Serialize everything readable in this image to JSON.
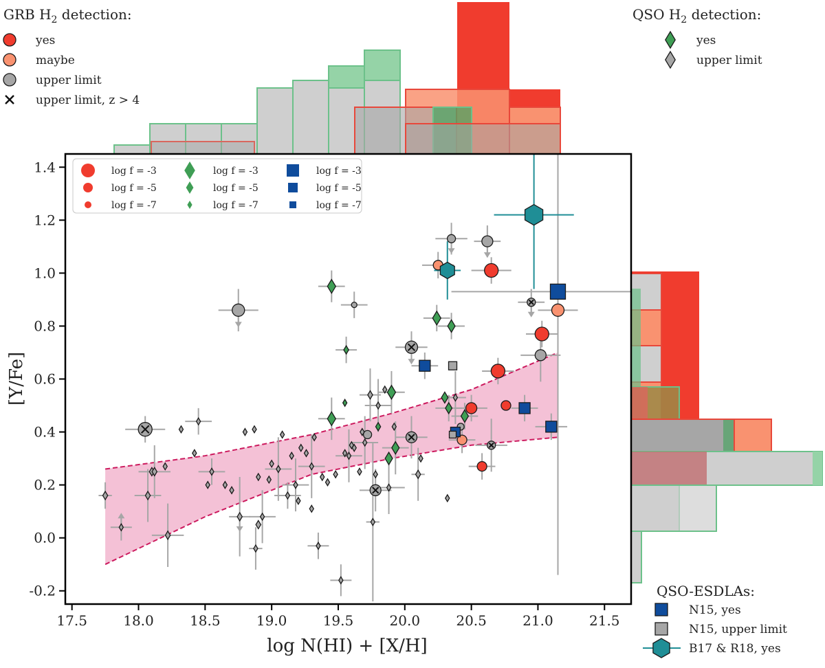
{
  "chart_data": {
    "type": "scatter",
    "xlabel": "log N(HI) + [X/H]",
    "ylabel": "[Y/Fe]",
    "xlim": [
      17.45,
      21.7
    ],
    "ylim": [
      -0.25,
      1.45
    ],
    "xticks": [
      17.5,
      18.0,
      18.5,
      19.0,
      19.5,
      20.0,
      20.5,
      21.0,
      21.5
    ],
    "xtick_labels": [
      "17.5",
      "18.0",
      "18.5",
      "19.0",
      "19.5",
      "20.0",
      "20.5",
      "21.0",
      "21.5"
    ],
    "yticks": [
      -0.2,
      0.0,
      0.2,
      0.4,
      0.6,
      0.8,
      1.0,
      1.2,
      1.4
    ],
    "ytick_labels": [
      "-0.2",
      "0.0",
      "0.2",
      "0.4",
      "0.6",
      "0.8",
      "1.0",
      "1.2",
      "1.4"
    ],
    "colors": {
      "grb_yes": "#f03c2e",
      "grb_maybe": "#f99270",
      "grey": "#a6a6a6",
      "qso_yes": "#3f9e55",
      "esdla": "#0f4c9c",
      "b17": "#1f8e96",
      "band": "#f3bed4",
      "band_line": "#cc1a5e"
    },
    "legends": {
      "grb": {
        "title": "GRB H",
        "title_sub": "2",
        "title_rest": " detection:",
        "items": [
          {
            "label": "yes",
            "marker": "circle",
            "color": "#f03c2e"
          },
          {
            "label": "maybe",
            "marker": "circle",
            "color": "#f99270"
          },
          {
            "label": "upper limit",
            "marker": "circle",
            "color": "#a6a6a6"
          },
          {
            "label": "upper limit, z > 4",
            "marker": "x",
            "color": "#222222"
          }
        ]
      },
      "qso": {
        "title": "QSO H",
        "title_sub": "2",
        "title_rest": " detection:",
        "items": [
          {
            "label": "yes",
            "marker": "diamond",
            "color": "#3f9e55"
          },
          {
            "label": "upper limit",
            "marker": "diamond",
            "color": "#a6a6a6"
          }
        ]
      },
      "esdla": {
        "title": "QSO-ESDLAs:",
        "items": [
          {
            "label": "N15, yes",
            "marker": "square",
            "color": "#0f4c9c"
          },
          {
            "label": "N15, upper limit",
            "marker": "square",
            "color": "#a6a6a6"
          },
          {
            "label": "B17 & R18, yes",
            "marker": "hexagon",
            "color": "#1f8e96"
          }
        ]
      },
      "size": {
        "columns": [
          {
            "marker": "circle",
            "color": "#f03c2e",
            "labels": [
              "log f = -3",
              "log f = -5",
              "log f = -7"
            ]
          },
          {
            "marker": "diamond",
            "color": "#3f9e55",
            "labels": [
              "log f = -3",
              "log f = -5",
              "log f = -7"
            ]
          },
          {
            "marker": "square",
            "color": "#0f4c9c",
            "labels": [
              "log f = -3",
              "log f = -5",
              "log f = -7"
            ]
          }
        ]
      }
    },
    "band": {
      "x": [
        17.75,
        21.15
      ],
      "upper_y": [
        0.26,
        0.31,
        0.39,
        0.47,
        0.56,
        0.7
      ],
      "upper_x": [
        17.75,
        18.5,
        19.3,
        19.9,
        20.5,
        21.15
      ],
      "lower_y": [
        -0.1,
        0.08,
        0.24,
        0.3,
        0.35,
        0.38
      ],
      "lower_x": [
        17.75,
        18.5,
        19.3,
        19.9,
        20.5,
        21.15
      ]
    },
    "series": [
      {
        "name": "GRB H2 yes",
        "marker": "circle",
        "color": "#f03c2e",
        "points": [
          [
            20.65,
            1.01,
            10
          ],
          [
            21.03,
            0.77,
            10
          ],
          [
            20.7,
            0.63,
            10
          ],
          [
            20.5,
            0.49,
            8
          ],
          [
            20.76,
            0.5,
            7
          ],
          [
            20.58,
            0.27,
            7
          ]
        ]
      },
      {
        "name": "GRB H2 maybe",
        "marker": "circle",
        "color": "#f99270",
        "points": [
          [
            20.25,
            1.03,
            7
          ],
          [
            21.15,
            0.86,
            9
          ],
          [
            20.43,
            0.37,
            7
          ]
        ]
      },
      {
        "name": "GRB upper limit",
        "marker": "circle",
        "color": "#a6a6a6",
        "points": [
          [
            18.75,
            0.86,
            9,
            1
          ],
          [
            20.62,
            1.12,
            8,
            1
          ],
          [
            20.35,
            1.13,
            6,
            1
          ],
          [
            19.62,
            0.88,
            4,
            0
          ],
          [
            21.02,
            0.69,
            8,
            0
          ],
          [
            19.72,
            0.39,
            6,
            0
          ],
          [
            20.42,
            0.42,
            5,
            0
          ],
          [
            20.36,
            0.39,
            5,
            0
          ]
        ]
      },
      {
        "name": "GRB upper limit z>4",
        "marker": "xcircle",
        "color": "#a6a6a6",
        "points": [
          [
            18.05,
            0.41,
            10,
            0
          ],
          [
            20.05,
            0.72,
            9,
            1
          ],
          [
            20.05,
            0.38,
            8,
            0
          ],
          [
            19.78,
            0.18,
            8,
            0
          ],
          [
            20.95,
            0.89,
            6,
            1
          ],
          [
            20.65,
            0.35,
            6,
            0
          ]
        ]
      },
      {
        "name": "QSO H2 yes",
        "marker": "diamond",
        "color": "#3f9e55",
        "points": [
          [
            19.45,
            0.95,
            10
          ],
          [
            20.24,
            0.83,
            10
          ],
          [
            20.35,
            0.8,
            9
          ],
          [
            19.56,
            0.71,
            6
          ],
          [
            19.9,
            0.55,
            10
          ],
          [
            19.45,
            0.45,
            10
          ],
          [
            19.93,
            0.34,
            9
          ],
          [
            19.88,
            0.3,
            9
          ],
          [
            20.33,
            0.49,
            8
          ],
          [
            20.45,
            0.46,
            9
          ],
          [
            20.3,
            0.53,
            8
          ],
          [
            19.8,
            0.42,
            6
          ],
          [
            19.55,
            0.51,
            5
          ]
        ]
      },
      {
        "name": "QSO upper limit",
        "marker": "diamond",
        "color": "#a6a6a6",
        "points": [
          [
            17.75,
            0.16,
            6,
            0
          ],
          [
            17.87,
            0.04,
            5,
            -1
          ],
          [
            18.07,
            0.16,
            6,
            0
          ],
          [
            18.1,
            0.25,
            6,
            0
          ],
          [
            18.12,
            0.25,
            6,
            0
          ],
          [
            18.2,
            0.27,
            5,
            0
          ],
          [
            18.22,
            0.01,
            6,
            0
          ],
          [
            18.32,
            0.41,
            5,
            0
          ],
          [
            18.42,
            0.32,
            5,
            0
          ],
          [
            18.45,
            0.44,
            5,
            0
          ],
          [
            18.52,
            0.2,
            5,
            0
          ],
          [
            18.55,
            0.25,
            5,
            0
          ],
          [
            18.65,
            0.2,
            5,
            0
          ],
          [
            18.7,
            0.18,
            5,
            0
          ],
          [
            18.76,
            0.08,
            6,
            1
          ],
          [
            18.8,
            0.4,
            5,
            0
          ],
          [
            18.87,
            0.41,
            5,
            0
          ],
          [
            18.88,
            -0.04,
            5,
            0
          ],
          [
            18.9,
            0.05,
            6,
            0
          ],
          [
            18.93,
            0.08,
            5,
            0
          ],
          [
            18.9,
            0.23,
            5,
            0
          ],
          [
            18.98,
            0.22,
            5,
            0
          ],
          [
            19.0,
            0.28,
            5,
            0
          ],
          [
            19.05,
            0.26,
            5,
            0
          ],
          [
            19.08,
            0.39,
            5,
            0
          ],
          [
            19.12,
            0.16,
            5,
            0
          ],
          [
            19.15,
            0.31,
            5,
            0
          ],
          [
            19.18,
            0.2,
            5,
            0
          ],
          [
            19.2,
            0.14,
            5,
            0
          ],
          [
            19.22,
            0.34,
            5,
            0
          ],
          [
            19.26,
            0.32,
            5,
            0
          ],
          [
            19.3,
            0.11,
            5,
            0
          ],
          [
            19.32,
            0.38,
            5,
            0
          ],
          [
            19.3,
            0.27,
            5,
            0
          ],
          [
            19.35,
            -0.03,
            5,
            0
          ],
          [
            19.38,
            0.23,
            5,
            0
          ],
          [
            19.42,
            0.21,
            5,
            0
          ],
          [
            19.48,
            0.24,
            5,
            0
          ],
          [
            19.52,
            -0.16,
            5,
            0
          ],
          [
            19.55,
            0.32,
            5,
            0
          ],
          [
            19.58,
            0.31,
            5,
            0
          ],
          [
            19.6,
            0.35,
            5,
            0
          ],
          [
            19.62,
            0.34,
            5,
            0
          ],
          [
            19.66,
            0.25,
            5,
            0
          ],
          [
            19.68,
            0.4,
            5,
            0
          ],
          [
            19.7,
            0.36,
            5,
            0
          ],
          [
            19.74,
            0.54,
            6,
            0
          ],
          [
            19.76,
            0.06,
            5,
            0
          ],
          [
            19.78,
            0.24,
            5,
            0
          ],
          [
            19.8,
            0.5,
            5,
            0
          ],
          [
            19.85,
            0.56,
            5,
            0
          ],
          [
            19.88,
            0.19,
            5,
            0
          ],
          [
            19.92,
            0.42,
            5,
            0
          ],
          [
            20.1,
            0.24,
            6,
            0
          ],
          [
            20.12,
            0.3,
            5,
            0
          ],
          [
            20.32,
            0.15,
            5,
            0
          ],
          [
            20.38,
            0.53,
            5,
            0
          ]
        ]
      },
      {
        "name": "N15 yes",
        "marker": "square",
        "color": "#0f4c9c",
        "points": [
          [
            21.15,
            0.93,
            11
          ],
          [
            20.15,
            0.65,
            8
          ],
          [
            20.38,
            0.4,
            7
          ],
          [
            20.9,
            0.49,
            8
          ],
          [
            21.1,
            0.42,
            8
          ]
        ]
      },
      {
        "name": "N15 upper limit",
        "marker": "square",
        "color": "#a6a6a6",
        "points": [
          [
            20.36,
            0.65,
            6
          ],
          [
            20.36,
            0.39,
            5
          ]
        ]
      },
      {
        "name": "B17 & R18 yes",
        "marker": "hexagon",
        "color": "#1f8e96",
        "points": [
          [
            20.97,
            1.22,
            15
          ],
          [
            20.32,
            1.01,
            12
          ]
        ]
      }
    ],
    "errorbars": [
      [
        17.75,
        0.16,
        0.05,
        0.05
      ],
      [
        17.87,
        0.04,
        0.08,
        0.05
      ],
      [
        18.07,
        0.16,
        0.1,
        0.1
      ],
      [
        18.12,
        0.25,
        0.12,
        0.1
      ],
      [
        18.22,
        0.01,
        0.12,
        0.12
      ],
      [
        18.45,
        0.44,
        0.1,
        0.05
      ],
      [
        18.55,
        0.25,
        0.1,
        0.05
      ],
      [
        18.76,
        0.08,
        0.08,
        0.15
      ],
      [
        18.88,
        -0.04,
        0.05,
        0.08
      ],
      [
        18.93,
        0.08,
        0.1,
        0.1
      ],
      [
        19.05,
        0.26,
        0.1,
        0.12
      ],
      [
        19.12,
        0.16,
        0.1,
        0.05
      ],
      [
        19.18,
        0.2,
        0.1,
        0.1
      ],
      [
        19.3,
        0.27,
        0.1,
        0.12
      ],
      [
        19.35,
        -0.03,
        0.08,
        0.05
      ],
      [
        19.52,
        -0.16,
        0.08,
        0.06
      ],
      [
        19.58,
        0.31,
        0.1,
        0.1
      ],
      [
        19.7,
        0.36,
        0.1,
        0.1
      ],
      [
        19.74,
        0.54,
        0.08,
        0.1
      ],
      [
        19.76,
        0.06,
        0.05,
        0.3
      ],
      [
        19.8,
        0.5,
        0.1,
        0.1
      ],
      [
        19.88,
        0.19,
        0.12,
        0.1
      ],
      [
        20.1,
        0.24,
        0.05,
        0.1
      ],
      [
        20.38,
        0.53,
        0.08,
        0.1
      ],
      [
        18.05,
        0.41,
        0.15,
        0.05
      ],
      [
        18.75,
        0.86,
        0.15,
        0.08
      ],
      [
        20.62,
        1.12,
        0.1,
        0.06
      ],
      [
        20.35,
        1.13,
        0.12,
        0.06
      ],
      [
        19.62,
        0.88,
        0.1,
        0.05
      ],
      [
        21.02,
        0.69,
        0.15,
        0.1
      ],
      [
        20.05,
        0.72,
        0.12,
        0.06
      ],
      [
        20.05,
        0.38,
        0.12,
        0.08
      ],
      [
        19.78,
        0.18,
        0.12,
        0.08
      ],
      [
        20.95,
        0.89,
        0.1,
        0.05
      ],
      [
        20.65,
        0.35,
        0.12,
        0.1
      ],
      [
        20.65,
        1.01,
        0.15,
        0.05
      ],
      [
        21.03,
        0.77,
        0.12,
        0.05
      ],
      [
        20.7,
        0.63,
        0.12,
        0.05
      ],
      [
        20.5,
        0.49,
        0.12,
        0.05
      ],
      [
        20.58,
        0.27,
        0.1,
        0.05
      ],
      [
        20.25,
        1.03,
        0.12,
        0.05
      ],
      [
        21.15,
        0.86,
        0.15,
        1.0
      ],
      [
        20.43,
        0.37,
        0.1,
        0.05
      ],
      [
        19.45,
        0.95,
        0.1,
        0.06
      ],
      [
        20.24,
        0.83,
        0.1,
        0.05
      ],
      [
        20.35,
        0.8,
        0.1,
        0.05
      ],
      [
        19.56,
        0.71,
        0.08,
        0.05
      ],
      [
        19.9,
        0.55,
        0.1,
        0.08
      ],
      [
        19.45,
        0.45,
        0.1,
        0.08
      ],
      [
        19.93,
        0.34,
        0.1,
        0.1
      ],
      [
        20.33,
        0.49,
        0.1,
        0.05
      ],
      [
        20.45,
        0.46,
        0.1,
        0.05
      ],
      [
        21.15,
        0.93,
        0.8,
        0.05
      ],
      [
        20.15,
        0.65,
        0.1,
        0.05
      ],
      [
        20.9,
        0.49,
        0.1,
        0.05
      ],
      [
        21.1,
        0.42,
        0.12,
        0.05
      ]
    ],
    "b17_errors": [
      [
        20.97,
        1.22,
        0.3,
        0.28
      ],
      [
        20.32,
        1.01,
        0.1,
        0.11
      ]
    ],
    "hist_top": {
      "grey": [
        [
          17.75,
          0.08,
          18.05
        ],
        [
          18.0,
          0.2,
          18.3
        ],
        [
          18.3,
          0.2,
          18.65
        ],
        [
          18.65,
          0.2,
          19.0
        ],
        [
          19.0,
          0.35,
          19.45
        ],
        [
          19.45,
          0.37,
          19.95
        ],
        [
          19.95,
          0.43,
          20.35
        ],
        [
          20.35,
          0.4,
          20.65
        ],
        [
          20.65,
          0.2,
          21.0
        ],
        [
          21.0,
          0.18,
          21.15
        ]
      ],
      "green": [
        [
          17.75,
          0.08,
          18.05
        ],
        [
          18.0,
          0.2,
          18.3
        ],
        [
          18.3,
          0.2,
          18.65
        ],
        [
          18.65,
          0.2,
          19.0
        ],
        [
          19.0,
          0.35,
          19.45
        ],
        [
          19.45,
          0.45,
          19.95
        ],
        [
          19.95,
          0.55,
          20.35
        ],
        [
          20.35,
          0.45,
          20.65
        ],
        [
          20.65,
          0.2,
          21.0
        ]
      ],
      "red": [
        [
          20.65,
          0.88,
          21.1
        ],
        [
          21.1,
          0.35,
          21.3
        ]
      ],
      "salmon": [
        [
          20.35,
          0.35,
          20.65
        ],
        [
          20.65,
          0.35,
          21.1
        ],
        [
          21.1,
          0.35,
          21.3
        ]
      ]
    }
  }
}
